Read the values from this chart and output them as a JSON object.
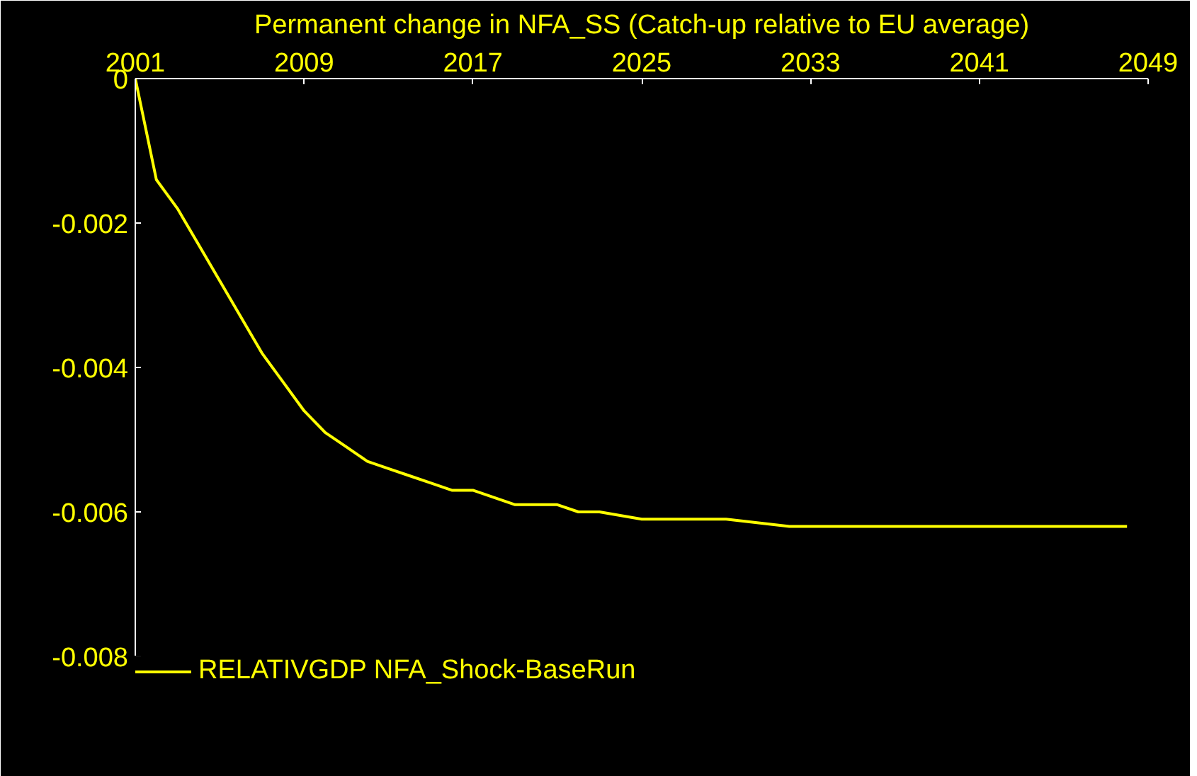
{
  "chart_data": {
    "type": "line",
    "title": "Permanent change in NFA_SS (Catch-up relative to EU average)",
    "x": [
      2001,
      2002,
      2003,
      2004,
      2005,
      2006,
      2007,
      2008,
      2009,
      2010,
      2011,
      2012,
      2013,
      2014,
      2015,
      2016,
      2017,
      2018,
      2019,
      2020,
      2021,
      2022,
      2023,
      2025,
      2027,
      2029,
      2032,
      2035,
      2041,
      2043,
      2048
    ],
    "series": [
      {
        "name": "RELATIVGDP NFA_Shock-BaseRun",
        "color": "#ffff00",
        "values": [
          0,
          -0.0014,
          -0.0018,
          -0.0023,
          -0.0028,
          -0.0033,
          -0.0038,
          -0.0042,
          -0.0046,
          -0.0049,
          -0.0051,
          -0.0053,
          -0.0054,
          -0.0055,
          -0.0056,
          -0.0057,
          -0.0057,
          -0.0058,
          -0.0059,
          -0.0059,
          -0.0059,
          -0.006,
          -0.006,
          -0.0061,
          -0.0061,
          -0.0061,
          -0.0062,
          -0.0062,
          -0.0062,
          -0.0062,
          -0.0062
        ]
      }
    ],
    "xlim": [
      2001,
      2049
    ],
    "xticks": [
      2001,
      2009,
      2017,
      2025,
      2033,
      2041,
      2049
    ],
    "ylim": [
      -0.008,
      0
    ],
    "yticks": [
      0,
      -0.002,
      -0.004,
      -0.006,
      -0.008
    ],
    "grid": false,
    "legend": "bottom left",
    "marker": "none",
    "line_style": "solid"
  }
}
